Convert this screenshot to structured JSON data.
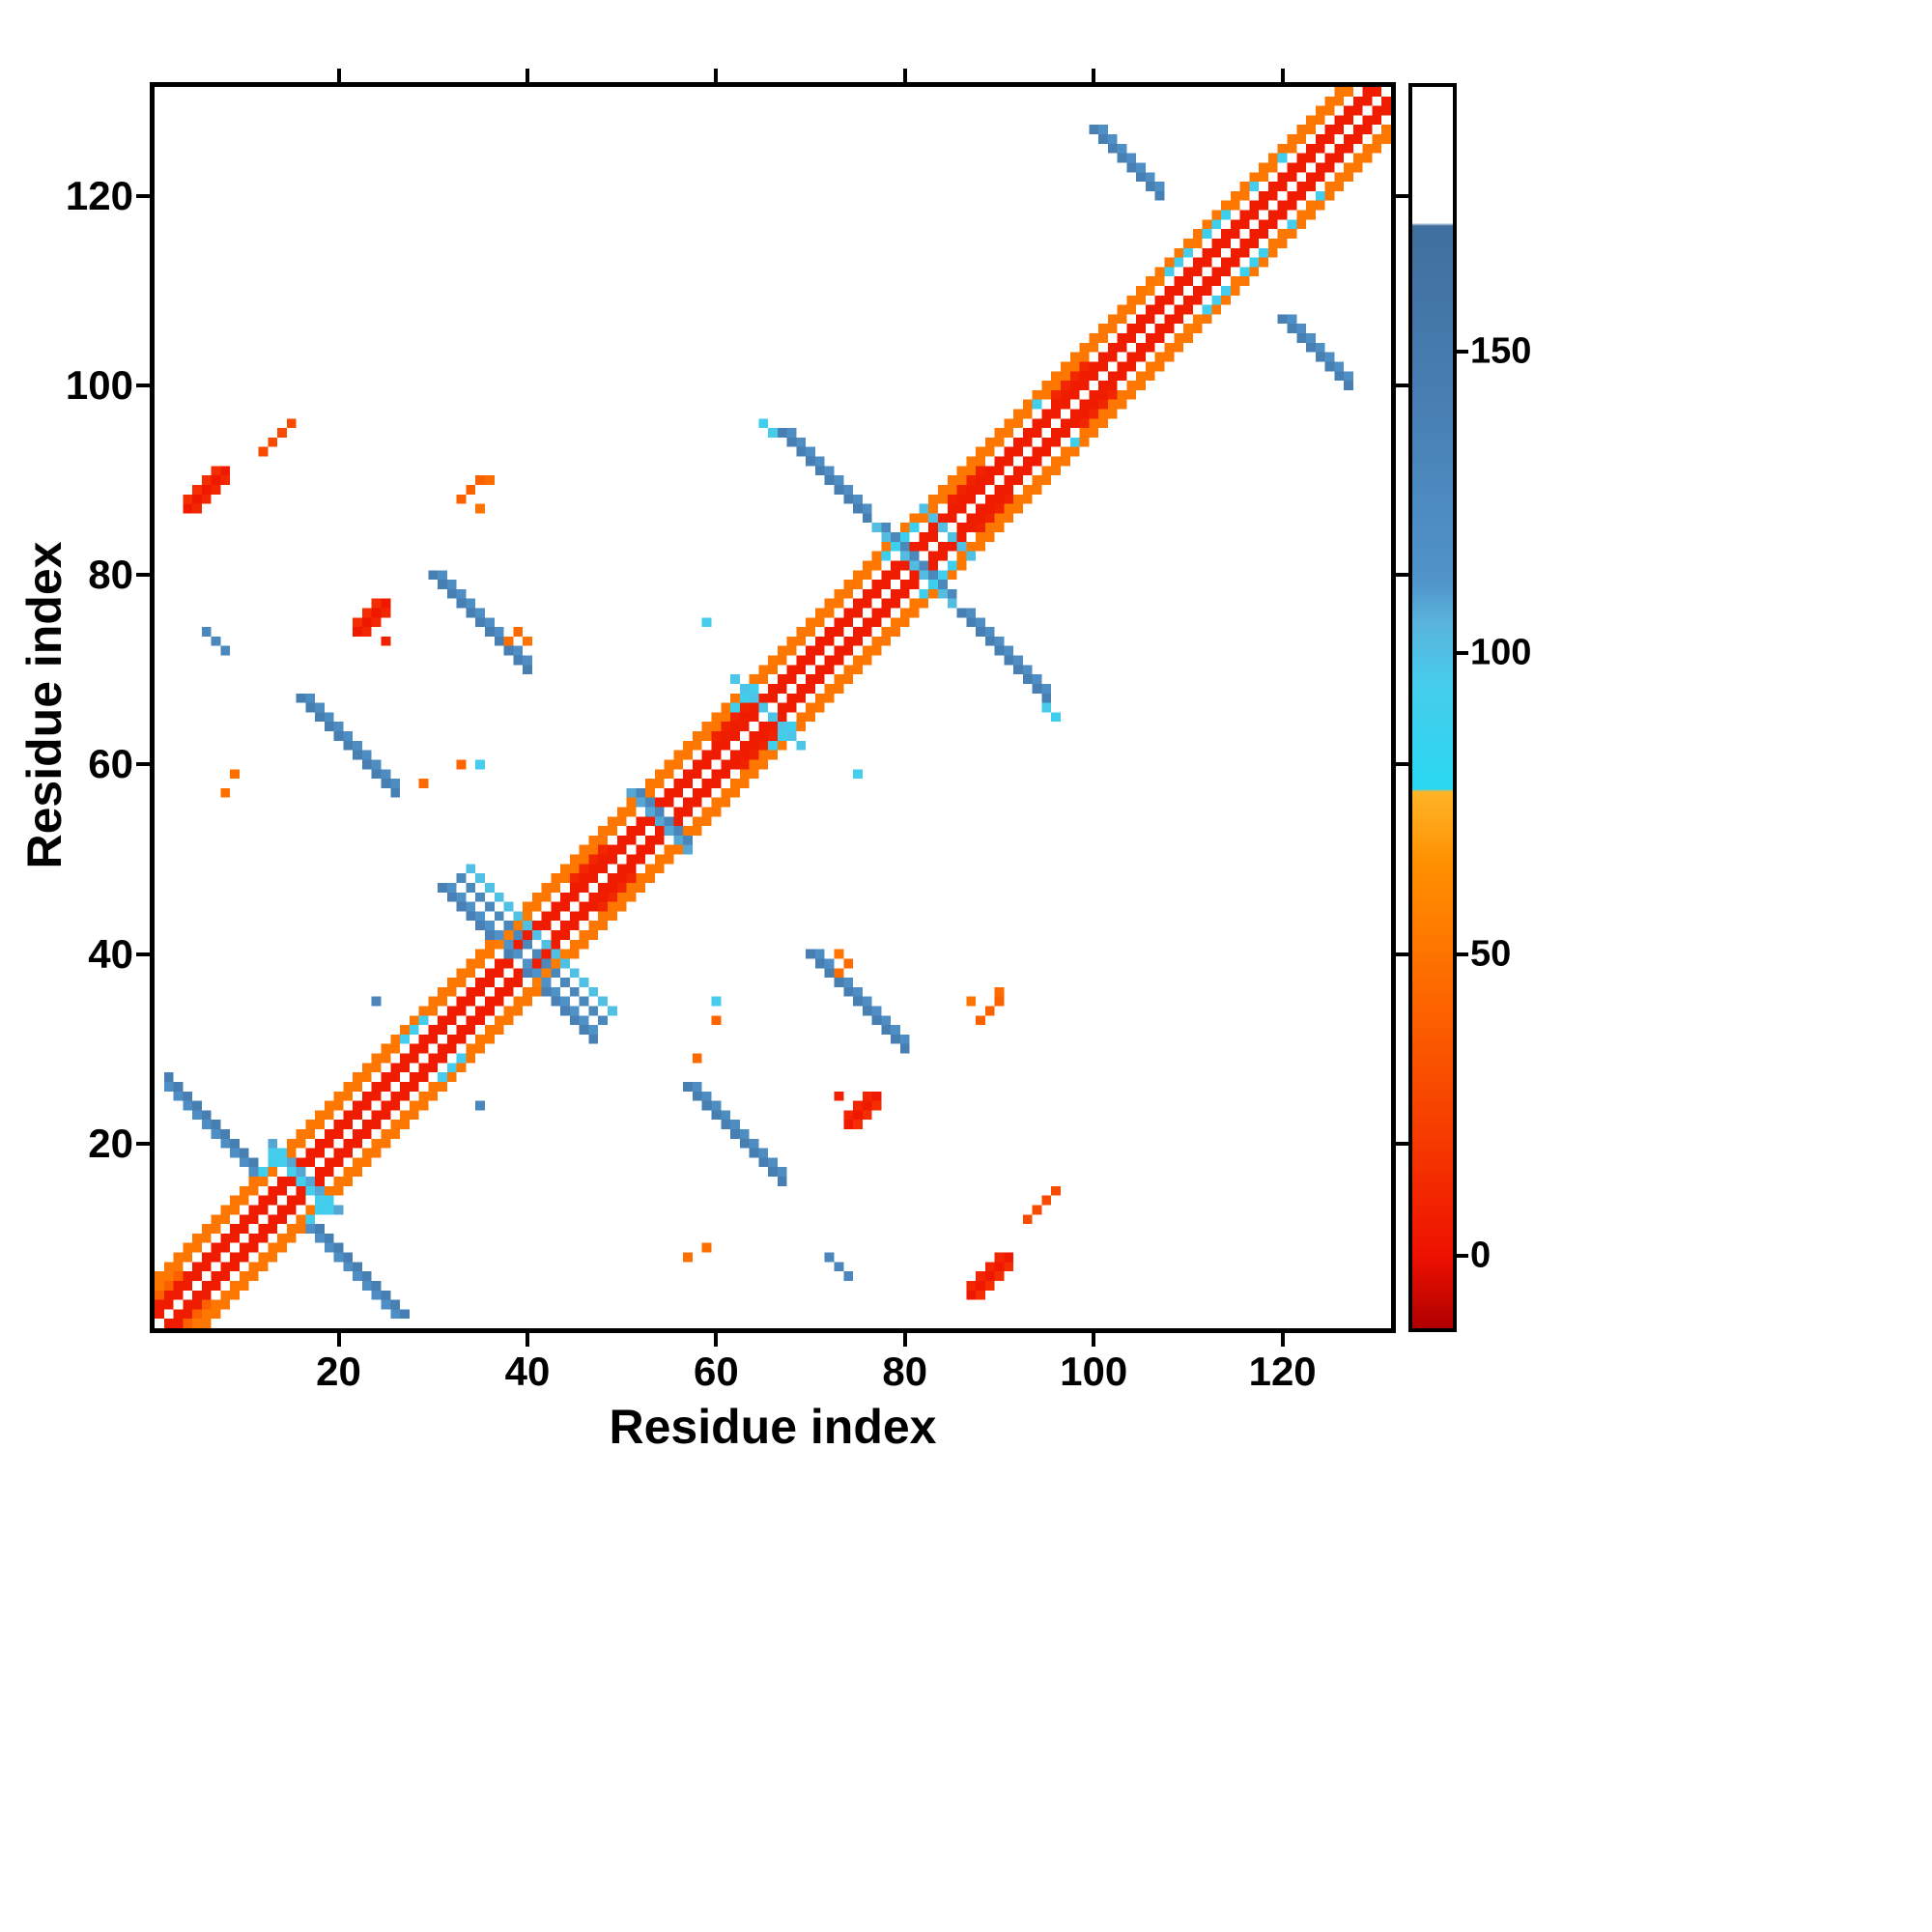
{
  "chart_data": {
    "type": "heatmap",
    "title": "",
    "xlabel": "Residue index",
    "ylabel": "Residue index",
    "n_residues": 131,
    "x_range": [
      1,
      131
    ],
    "y_range": [
      1,
      131
    ],
    "x_ticks": [
      20,
      40,
      60,
      80,
      100,
      120
    ],
    "y_ticks": [
      20,
      40,
      60,
      80,
      100,
      120
    ],
    "grid": false,
    "background_value_color": "#ffffff",
    "colorbar": {
      "position": "right",
      "ticks": [
        0,
        50,
        100,
        150
      ],
      "vmin": -12,
      "vmax": 194,
      "white_above": 172,
      "stops": [
        [
          -12,
          "#b00000"
        ],
        [
          0,
          "#ee1100"
        ],
        [
          20,
          "#f63b00"
        ],
        [
          45,
          "#fd6a00"
        ],
        [
          65,
          "#ff9000"
        ],
        [
          77,
          "#ffb428"
        ],
        [
          77.5,
          "#28d8f0"
        ],
        [
          95,
          "#46ccec"
        ],
        [
          105,
          "#5ab4dc"
        ],
        [
          112,
          "#5094ca"
        ],
        [
          140,
          "#4880b4"
        ],
        [
          171,
          "#3f6f9e"
        ],
        [
          171.5,
          "#ffffff"
        ],
        [
          194,
          "#ffffff"
        ]
      ]
    },
    "diagonal_bands": [
      {
        "offsets": [
          1,
          2
        ],
        "value": 5
      },
      {
        "offsets": [
          4,
          5
        ],
        "value": 52
      }
    ],
    "segments": [
      {
        "x": 2,
        "y": 27,
        "dir": "anti",
        "len": 11,
        "v": 142
      },
      {
        "x": 2,
        "y": 26,
        "dir": "anti",
        "len": 10,
        "v": 120
      },
      {
        "x": 13,
        "y": 20,
        "dir": "anti",
        "len": 8,
        "v": 108
      },
      {
        "x": 13,
        "y": 19,
        "dir": "anti",
        "len": 6,
        "v": 95
      },
      {
        "x": 57,
        "y": 26,
        "dir": "anti",
        "len": 11,
        "v": 142
      },
      {
        "x": 58,
        "y": 26,
        "dir": "anti",
        "len": 10,
        "v": 122
      },
      {
        "x": 31,
        "y": 47,
        "dir": "anti",
        "len": 8,
        "v": 138
      },
      {
        "x": 32,
        "y": 47,
        "dir": "anti",
        "len": 8,
        "v": 115
      },
      {
        "x": 33,
        "y": 48,
        "dir": "anti",
        "len": 8,
        "v": 128
      },
      {
        "x": 34,
        "y": 49,
        "dir": "anti",
        "len": 8,
        "v": 100
      },
      {
        "x": 30,
        "y": 80,
        "dir": "anti",
        "len": 11,
        "v": 142
      },
      {
        "x": 31,
        "y": 80,
        "dir": "anti",
        "len": 10,
        "v": 120
      },
      {
        "x": 67,
        "y": 95,
        "dir": "anti",
        "len": 10,
        "v": 142
      },
      {
        "x": 68,
        "y": 95,
        "dir": "anti",
        "len": 9,
        "v": 120
      },
      {
        "x": 100,
        "y": 127,
        "dir": "anti",
        "len": 8,
        "v": 140
      },
      {
        "x": 101,
        "y": 127,
        "dir": "anti",
        "len": 7,
        "v": 118
      },
      {
        "x": 72,
        "y": 8,
        "dir": "anti",
        "len": 3,
        "v": 130
      },
      {
        "x": 77,
        "y": 85,
        "dir": "anti",
        "len": 8,
        "v": 102
      },
      {
        "x": 78,
        "y": 85,
        "dir": "anti",
        "len": 6,
        "v": 128
      },
      {
        "x": 51,
        "y": 57,
        "dir": "anti",
        "len": 6,
        "v": 108
      },
      {
        "x": 52,
        "y": 57,
        "dir": "anti",
        "len": 4,
        "v": 132
      },
      {
        "x": 62,
        "y": 69,
        "dir": "anti",
        "len": 7,
        "v": 98
      },
      {
        "x": 82,
        "y": 87,
        "dir": "anti",
        "len": 5,
        "v": 100
      },
      {
        "x": 4,
        "y": 87,
        "dir": "par",
        "len": 5,
        "v": 4
      },
      {
        "x": 5,
        "y": 87,
        "dir": "par",
        "len": 4,
        "v": 10
      },
      {
        "x": 4,
        "y": 88,
        "dir": "par",
        "len": 4,
        "v": 14
      },
      {
        "x": 12,
        "y": 93,
        "dir": "par",
        "len": 4,
        "v": 28
      },
      {
        "x": 22,
        "y": 74,
        "dir": "par",
        "len": 4,
        "v": 4
      },
      {
        "x": 23,
        "y": 74,
        "dir": "par",
        "len": 3,
        "v": 10
      },
      {
        "x": 22,
        "y": 75,
        "dir": "par",
        "len": 3,
        "v": 14
      },
      {
        "x": 33,
        "y": 88,
        "dir": "par",
        "len": 3,
        "v": 40
      },
      {
        "x": 12,
        "y": 17,
        "dir": "par",
        "len": 3,
        "v": 92
      },
      {
        "x": 27,
        "y": 31,
        "dir": "par",
        "len": 3,
        "v": 95
      },
      {
        "x": 37,
        "y": 41,
        "dir": "par",
        "len": 4,
        "v": 55
      },
      {
        "x": 64,
        "y": 68,
        "dir": "par",
        "len": 4,
        "v": 50
      },
      {
        "x": 62,
        "y": 66,
        "dir": "par",
        "len": 3,
        "v": 92
      },
      {
        "x": 78,
        "y": 82,
        "dir": "par",
        "len": 4,
        "v": 90
      },
      {
        "x": 106,
        "y": 110,
        "dir": "par",
        "len": 4,
        "v": 55
      },
      {
        "x": 108,
        "y": 112,
        "dir": "par",
        "len": 3,
        "v": 95
      },
      {
        "x": 112,
        "y": 116,
        "dir": "par",
        "len": 3,
        "v": 90
      },
      {
        "x": 117,
        "y": 121,
        "dir": "par",
        "len": 3,
        "v": 95
      },
      {
        "x": 118,
        "y": 122,
        "dir": "par",
        "len": 3,
        "v": 52
      },
      {
        "x": 38,
        "y": 73,
        "dir": "par",
        "len": 2,
        "v": 48
      },
      {
        "x": 1,
        "y": 4,
        "dir": "par",
        "len": 3,
        "v": 40
      },
      {
        "x": 60,
        "y": 63,
        "dir": "par",
        "len": 4,
        "v": 8
      },
      {
        "x": 45,
        "y": 48,
        "dir": "par",
        "len": 4,
        "v": 10
      },
      {
        "x": 85,
        "y": 88,
        "dir": "par",
        "len": 4,
        "v": 8
      },
      {
        "x": 96,
        "y": 99,
        "dir": "par",
        "len": 4,
        "v": 10
      }
    ],
    "cells": [
      [
        24,
        35,
        130
      ],
      [
        35,
        60,
        95
      ],
      [
        59,
        75,
        95
      ],
      [
        9,
        59,
        48
      ],
      [
        29,
        58,
        45
      ],
      [
        33,
        60,
        42
      ],
      [
        36,
        90,
        46
      ],
      [
        35,
        87,
        50
      ],
      [
        25,
        73,
        8
      ],
      [
        8,
        57,
        48
      ],
      [
        66,
        95,
        96
      ],
      [
        65,
        96,
        90
      ],
      [
        73,
        40,
        50
      ],
      [
        74,
        39,
        45
      ],
      [
        120,
        124,
        92
      ],
      [
        94,
        98,
        92
      ]
    ],
    "symmetric": true
  }
}
